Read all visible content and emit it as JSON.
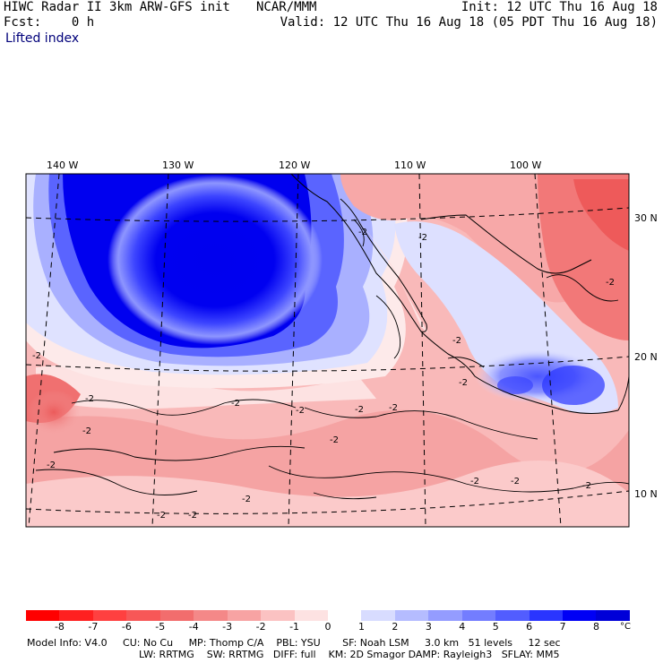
{
  "header": {
    "title": "HIWC Radar II 3km ARW-GFS init",
    "agency": "NCAR/MMM",
    "init": "Init: 12 UTC Thu 16 Aug 18",
    "fcst": "Fcst:    0 h",
    "valid": "Valid: 12 UTC Thu 16 Aug 18 (05 PDT Thu 16 Aug 18)",
    "field": "Lifted index"
  },
  "map": {
    "lon_labels": [
      "140 W",
      "130 W",
      "120 W",
      "110 W",
      "100 W"
    ],
    "lat_labels": [
      "30 N",
      "20 N",
      "10 N"
    ],
    "contour_label": "-2",
    "colors": {
      "deep_negative": "#ff0000",
      "mid_negative": "#f47a7a",
      "light_negative": "#fcc9c9",
      "neutral": "#fde8e8",
      "light_positive": "#c5cbff",
      "mid_positive": "#7d87ff",
      "strong_positive": "#0000f0"
    }
  },
  "colorbar": {
    "ticks": [
      "-8",
      "-7",
      "-6",
      "-5",
      "-4",
      "-3",
      "-2",
      "-1",
      "0",
      "1",
      "2",
      "3",
      "4",
      "5",
      "6",
      "7",
      "8"
    ],
    "unit": "°C",
    "colors": [
      "#ff0000",
      "#ff2020",
      "#ff4040",
      "#f75757",
      "#f26d6d",
      "#f48888",
      "#f7a3a3",
      "#fbc2c2",
      "#fde2e2",
      "#ffffff",
      "#d8dcff",
      "#b5bcff",
      "#949cff",
      "#737dff",
      "#525dff",
      "#2a35ff",
      "#0000f5",
      "#0000d8"
    ]
  },
  "footer": {
    "line1": "Model Info: V4.0     CU: No Cu     MP: Thomp C/A    PBL: YSU       SF: Noah LSM     3.0 km   51 levels     12 sec",
    "line2": "LW: RRTMG    SW: RRTMG   DIFF: full    KM: 2D Smagor DAMP: Rayleigh3   SFLAY: MM5"
  }
}
